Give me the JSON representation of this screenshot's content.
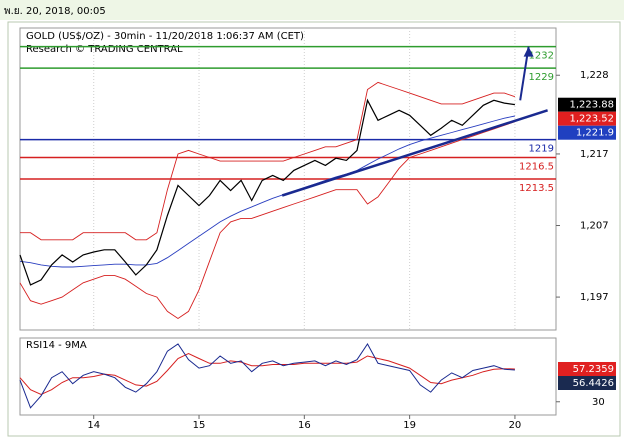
{
  "header": "พ.ย. 20, 2018, 00:05",
  "chart_data": {
    "type": "line",
    "title": "GOLD (US$/OZ) - 30min - 11/20/2018 1:06:37 AM (CET)",
    "subtitle": "Research © TRADING CENTRAL",
    "x": [
      0.3,
      0.4,
      0.5,
      0.6,
      0.7,
      0.8,
      0.9,
      1.0,
      1.1,
      1.2,
      1.3,
      1.4,
      1.5,
      1.6,
      1.7,
      1.8,
      1.9,
      2.0,
      2.1,
      2.2,
      2.3,
      2.4,
      2.5,
      2.6,
      2.7,
      2.8,
      2.9,
      3.0,
      3.1,
      3.2,
      3.3,
      3.4,
      3.5,
      3.6,
      3.7,
      3.8,
      3.9,
      4.0,
      4.1,
      4.2,
      4.3,
      4.4,
      4.5,
      4.6,
      4.7,
      4.8,
      4.9,
      5.0
    ],
    "xlim": [
      0.3,
      5.39
    ],
    "xticks": [
      {
        "value": 1,
        "label": "14"
      },
      {
        "value": 2,
        "label": "15"
      },
      {
        "value": 3,
        "label": "16"
      },
      {
        "value": 4,
        "label": "19"
      },
      {
        "value": 5,
        "label": "20"
      }
    ],
    "ylim": [
      1192.4,
      1234.6
    ],
    "yticks": [
      {
        "value": 1197,
        "label": "1,197"
      },
      {
        "value": 1207,
        "label": "1,207"
      },
      {
        "value": 1217,
        "label": "1,217"
      },
      {
        "value": 1228,
        "label": "1,228"
      }
    ],
    "series": [
      {
        "color": "#d62020",
        "values": [
          1206,
          1206,
          1205,
          1205,
          1205,
          1205,
          1206,
          1206,
          1206,
          1206,
          1206,
          1205,
          1205,
          1206,
          1212,
          1217,
          1217.5,
          1217,
          1216.5,
          1216,
          1216,
          1216,
          1216,
          1216,
          1216,
          1216,
          1216.5,
          1217,
          1217.5,
          1218,
          1218,
          1218.5,
          1219,
          1226,
          1227,
          1226.5,
          1226,
          1225.5,
          1225,
          1224.5,
          1224,
          1224,
          1224,
          1224.5,
          1225,
          1225.5,
          1225.5,
          1225
        ]
      },
      {
        "color": "#d62020",
        "values": [
          1199,
          1196.5,
          1196,
          1196.5,
          1197,
          1198,
          1199,
          1199.5,
          1200,
          1200,
          1199.5,
          1198.5,
          1197.5,
          1197,
          1195,
          1194,
          1195,
          1198,
          1202,
          1206,
          1207.5,
          1208,
          1208,
          1208.5,
          1209,
          1209.5,
          1210,
          1210.5,
          1211,
          1211.5,
          1212,
          1212,
          1212,
          1210,
          1211,
          1213,
          1215,
          1216.5,
          1217,
          1217.5,
          1218,
          1218.5,
          1219,
          1219.5,
          1220,
          1220.5,
          1221,
          1221.5
        ]
      },
      {
        "color": "#2a3fc0",
        "values": [
          1202,
          1201.8,
          1201.5,
          1201.3,
          1201.2,
          1201.2,
          1201.3,
          1201.4,
          1201.5,
          1201.6,
          1201.6,
          1201.5,
          1201.5,
          1201.7,
          1202.5,
          1203.5,
          1204.5,
          1205.5,
          1206.5,
          1207.5,
          1208.3,
          1209,
          1209.6,
          1210.2,
          1210.8,
          1211.3,
          1211.8,
          1212.3,
          1212.8,
          1213.3,
          1213.8,
          1214.2,
          1214.7,
          1215.5,
          1216.3,
          1217,
          1217.7,
          1218.3,
          1218.8,
          1219.2,
          1219.6,
          1220,
          1220.4,
          1220.8,
          1221.2,
          1221.6,
          1222,
          1222.3
        ]
      },
      {
        "color": "#000000",
        "values": [
          1202.9,
          1198.7,
          1199.4,
          1201.5,
          1202.9,
          1201.9,
          1202.9,
          1203.3,
          1203.6,
          1203.6,
          1201.9,
          1200.1,
          1201.5,
          1203.6,
          1208.4,
          1212.6,
          1211.2,
          1209.8,
          1211.2,
          1213.3,
          1211.9,
          1213.3,
          1210.5,
          1213.3,
          1214.0,
          1213.3,
          1214.7,
          1215.4,
          1216.1,
          1215.4,
          1216.4,
          1216.1,
          1217.5,
          1224.5,
          1221.7,
          1222.4,
          1223.1,
          1222.4,
          1221.0,
          1219.6,
          1220.6,
          1221.7,
          1221.0,
          1222.4,
          1223.8,
          1224.5,
          1224.1,
          1223.9
        ]
      }
    ],
    "levels": [
      {
        "value": 1232,
        "label": "1232",
        "color": "#2e9c2e"
      },
      {
        "value": 1229,
        "label": "1229",
        "color": "#2e9c2e"
      },
      {
        "value": 1219,
        "label": "1219",
        "color": "#1a2aa8"
      },
      {
        "value": 1216.5,
        "label": "1216.5",
        "color": "#d62020"
      },
      {
        "value": 1213.5,
        "label": "1213.5",
        "color": "#d62020"
      }
    ],
    "trendline": {
      "color": "#1a2a90",
      "x": [
        2.79,
        5.31
      ],
      "values": [
        1211.2,
        1223.1
      ]
    },
    "arrow": {
      "color": "#1a2a90",
      "x": [
        5.05,
        5.13
      ],
      "values": [
        1224.5,
        1232
      ]
    },
    "price_labels": [
      {
        "value": 1223.88,
        "label": "1,223.88",
        "color": "#000000"
      },
      {
        "value": 1223.52,
        "label": "1,223.52",
        "color": "#e02020"
      },
      {
        "value": 1221.9,
        "label": "1,221.9",
        "color": "#2040c0"
      }
    ],
    "rsi": {
      "title": "RSI14 - 9MA",
      "ylim": [
        19,
        83
      ],
      "yticks": [
        30
      ],
      "series": [
        {
          "color": "#d62020",
          "values": [
            50,
            40,
            36,
            40,
            46,
            50,
            50,
            51,
            53,
            52,
            48,
            44,
            43,
            47,
            56,
            66,
            70,
            66,
            62,
            62,
            64,
            63,
            60,
            60,
            61,
            61,
            61,
            62,
            62,
            62,
            62,
            62,
            63,
            68,
            66,
            64,
            61,
            58,
            52,
            46,
            45,
            48,
            50,
            52,
            55,
            57,
            57.5,
            57.2
          ]
        },
        {
          "color": "#1a2a90",
          "values": [
            48,
            25,
            35,
            50,
            55,
            45,
            52,
            55,
            53,
            50,
            42,
            38,
            45,
            55,
            72,
            78,
            65,
            58,
            60,
            68,
            62,
            64,
            55,
            62,
            64,
            60,
            62,
            63,
            64,
            60,
            64,
            61,
            65,
            78,
            62,
            60,
            58,
            56,
            44,
            38,
            48,
            54,
            50,
            56,
            58,
            60,
            57,
            56.4
          ]
        }
      ],
      "value_labels": [
        {
          "value": 57.2359,
          "label": "57.2359",
          "color": "#e02020"
        },
        {
          "value": 56.4426,
          "label": "56.4426",
          "color": "#1a2a50"
        }
      ]
    }
  }
}
